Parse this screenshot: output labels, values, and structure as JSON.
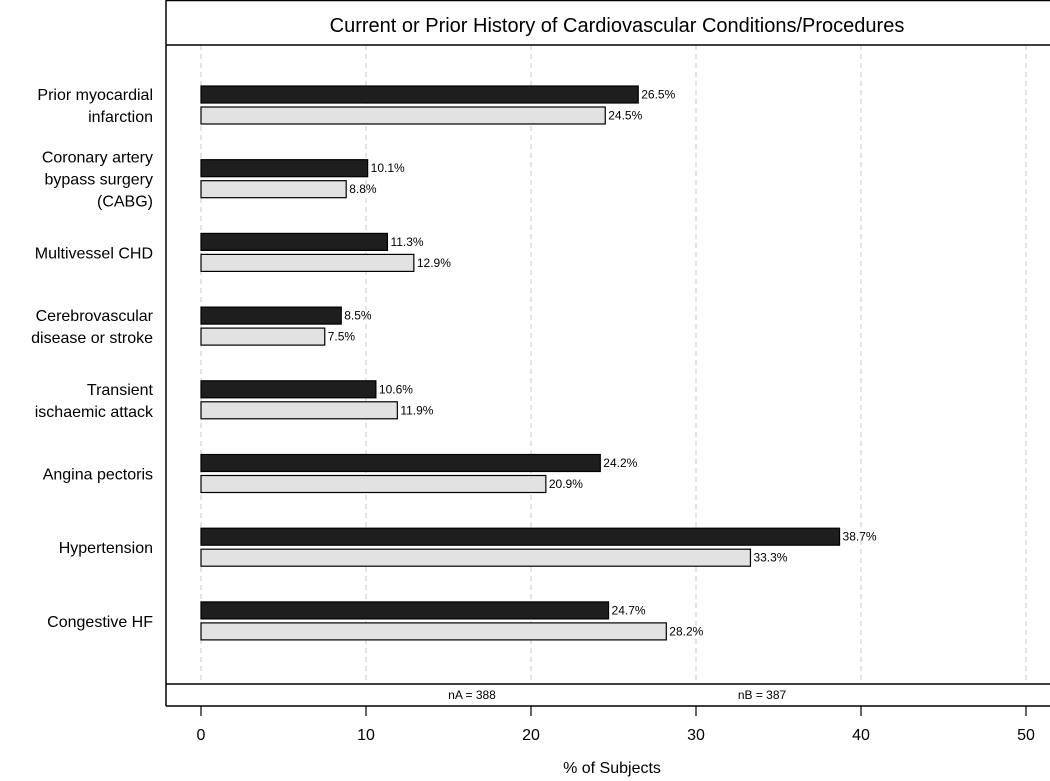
{
  "chart_data": {
    "type": "bar",
    "orientation": "horizontal",
    "title": "Current or Prior History of Cardiovascular Conditions/Procedures",
    "xlabel": "% of Subjects",
    "ylabel": "",
    "xlim": [
      0,
      50
    ],
    "xticks": [
      0,
      10,
      20,
      30,
      40,
      50
    ],
    "grid": "vertical dashed",
    "categories": [
      [
        "Prior myocardial",
        "infarction"
      ],
      [
        "Coronary artery",
        "bypass surgery",
        "(CABG)"
      ],
      [
        "Multivessel CHD"
      ],
      [
        "Cerebrovascular",
        "disease or stroke"
      ],
      [
        "Transient",
        "ischaemic attack"
      ],
      [
        "Angina pectoris"
      ],
      [
        "Hypertension"
      ],
      [
        "Congestive HF"
      ]
    ],
    "series": [
      {
        "values": [
          26.5,
          10.1,
          11.3,
          8.5,
          10.6,
          24.2,
          38.7,
          24.7
        ],
        "color": "#1e1e1e"
      },
      {
        "values": [
          24.5,
          8.8,
          12.9,
          7.5,
          11.9,
          20.9,
          33.3,
          28.2
        ],
        "color": "#e2e2e2"
      }
    ],
    "value_suffix": "%",
    "footnotes": [
      "nA = 388",
      "nB = 387"
    ]
  }
}
